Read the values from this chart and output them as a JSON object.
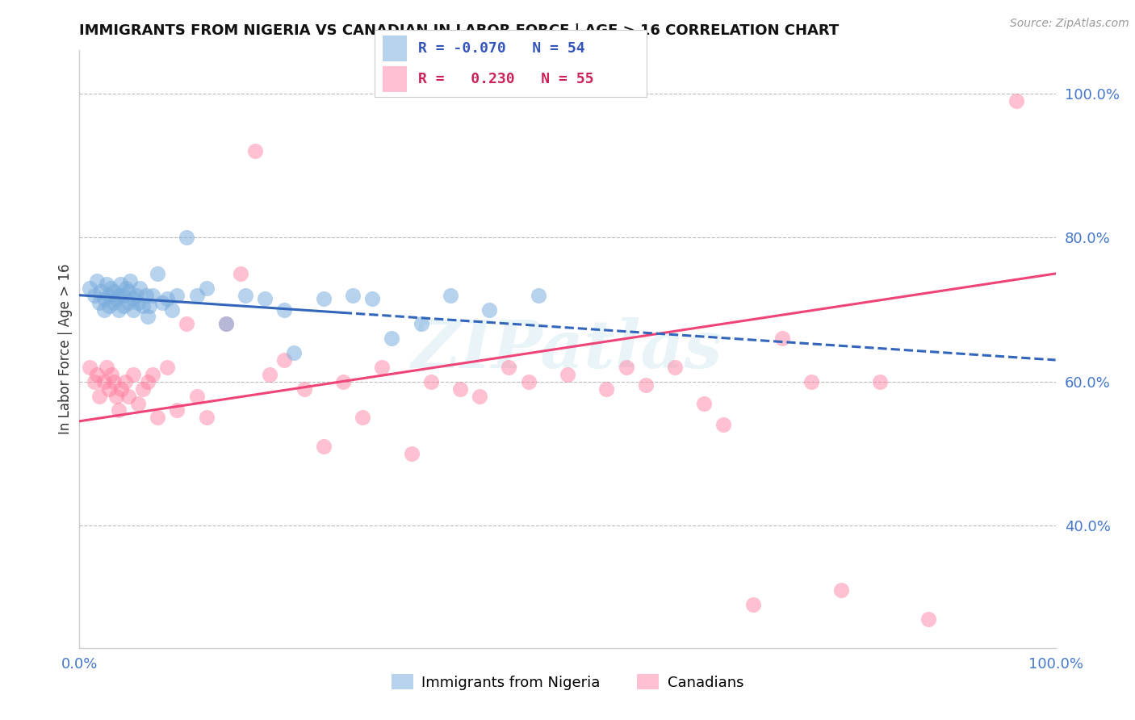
{
  "title": "IMMIGRANTS FROM NIGERIA VS CANADIAN IN LABOR FORCE | AGE > 16 CORRELATION CHART",
  "source": "Source: ZipAtlas.com",
  "ylabel": "In Labor Force | Age > 16",
  "xlim": [
    0.0,
    1.0
  ],
  "ylim": [
    0.23,
    1.06
  ],
  "ytick_vals_right": [
    0.4,
    0.6,
    0.8,
    1.0
  ],
  "ytick_labels_right": [
    "40.0%",
    "60.0%",
    "80.0%",
    "100.0%"
  ],
  "blue_color": "#7AADDD",
  "pink_color": "#FF7799",
  "blue_label": "Immigrants from Nigeria",
  "pink_label": "Canadians",
  "watermark": "ZIPatlas",
  "blue_line_color": "#3366BB",
  "pink_line_color": "#EE4477",
  "blue_x": [
    0.01,
    0.015,
    0.018,
    0.02,
    0.022,
    0.025,
    0.025,
    0.028,
    0.03,
    0.03,
    0.032,
    0.035,
    0.035,
    0.038,
    0.04,
    0.04,
    0.042,
    0.045,
    0.045,
    0.048,
    0.05,
    0.05,
    0.052,
    0.055,
    0.055,
    0.058,
    0.06,
    0.062,
    0.065,
    0.068,
    0.07,
    0.072,
    0.075,
    0.08,
    0.085,
    0.09,
    0.095,
    0.1,
    0.11,
    0.12,
    0.13,
    0.15,
    0.17,
    0.19,
    0.21,
    0.22,
    0.25,
    0.28,
    0.3,
    0.32,
    0.35,
    0.38,
    0.42,
    0.47
  ],
  "blue_y": [
    0.73,
    0.72,
    0.74,
    0.71,
    0.725,
    0.7,
    0.715,
    0.735,
    0.705,
    0.72,
    0.73,
    0.71,
    0.725,
    0.715,
    0.7,
    0.72,
    0.735,
    0.705,
    0.72,
    0.73,
    0.71,
    0.725,
    0.74,
    0.715,
    0.7,
    0.72,
    0.71,
    0.73,
    0.705,
    0.72,
    0.69,
    0.705,
    0.72,
    0.75,
    0.71,
    0.715,
    0.7,
    0.72,
    0.8,
    0.72,
    0.73,
    0.68,
    0.72,
    0.715,
    0.7,
    0.64,
    0.715,
    0.72,
    0.715,
    0.66,
    0.68,
    0.72,
    0.7,
    0.72
  ],
  "pink_x": [
    0.01,
    0.015,
    0.018,
    0.02,
    0.025,
    0.028,
    0.03,
    0.033,
    0.035,
    0.038,
    0.04,
    0.043,
    0.047,
    0.05,
    0.055,
    0.06,
    0.065,
    0.07,
    0.075,
    0.08,
    0.09,
    0.1,
    0.11,
    0.12,
    0.13,
    0.15,
    0.165,
    0.18,
    0.195,
    0.21,
    0.23,
    0.25,
    0.27,
    0.29,
    0.31,
    0.34,
    0.36,
    0.39,
    0.41,
    0.44,
    0.46,
    0.5,
    0.54,
    0.56,
    0.58,
    0.61,
    0.64,
    0.66,
    0.69,
    0.72,
    0.75,
    0.78,
    0.82,
    0.87,
    0.96
  ],
  "pink_y": [
    0.62,
    0.6,
    0.61,
    0.58,
    0.6,
    0.62,
    0.59,
    0.61,
    0.6,
    0.58,
    0.56,
    0.59,
    0.6,
    0.58,
    0.61,
    0.57,
    0.59,
    0.6,
    0.61,
    0.55,
    0.62,
    0.56,
    0.68,
    0.58,
    0.55,
    0.68,
    0.75,
    0.92,
    0.61,
    0.63,
    0.59,
    0.51,
    0.6,
    0.55,
    0.62,
    0.5,
    0.6,
    0.59,
    0.58,
    0.62,
    0.6,
    0.61,
    0.59,
    0.62,
    0.595,
    0.62,
    0.57,
    0.54,
    0.29,
    0.66,
    0.6,
    0.31,
    0.6,
    0.27,
    0.99
  ],
  "blue_trend_x": [
    0.0,
    0.27,
    1.0
  ],
  "blue_trend_y_start": 0.72,
  "blue_trend_y_mid": 0.71,
  "blue_trend_y_end": 0.63,
  "pink_trend_y_start": 0.545,
  "pink_trend_y_end": 0.75
}
